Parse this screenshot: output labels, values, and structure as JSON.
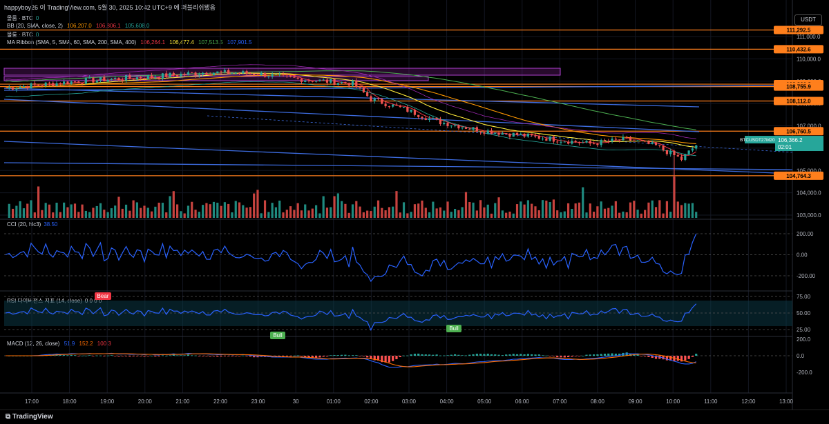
{
  "header": {
    "author_line": "happyboy26 이 TradingView.com, 5월 30, 2025 10:42 UTC+9 에 퍼블리쉬됐음"
  },
  "legend": {
    "row1": {
      "name": "몰룸 · BTC",
      "value": "0"
    },
    "row2": {
      "name": "BB (20, SMA, close, 2)",
      "v1": "106,207.0",
      "v2": "106,806.1",
      "v3": "105,608.0"
    },
    "row3": {
      "name": "몰룸 · BTC",
      "value": "0"
    },
    "row4": {
      "name": "MA Ribbon (SMA, 5, SMA, 60, SMA, 200, SMA, 400)",
      "v1": "106,264.1",
      "v2": "106,477.4",
      "v3": "107,513.5",
      "v4": "107,901.5"
    },
    "cci": {
      "name": "CCI (20, hlc3)",
      "value": "38.50"
    },
    "rsi": {
      "name": "RSI 다이버전스 지표 (14, close)",
      "values": "0  0  0  0"
    },
    "macd": {
      "name": "MACD (12, 26, close)",
      "v1": "51.9",
      "v2": "152.2",
      "v3": "100.3"
    }
  },
  "price_axis": {
    "unit": "USDT",
    "ticks": [
      "111,000.0",
      "110,000.0",
      "109,000.0",
      "108,000.0",
      "107,000.0",
      "106,000.0",
      "105,000.0",
      "104,000.0",
      "103,000.0"
    ],
    "badges": [
      {
        "value": "111,292.5",
        "color": "#ff7f1c"
      },
      {
        "value": "110,432.6",
        "color": "#ff7f1c"
      },
      {
        "value": "108,866.8",
        "color": "#ff7f1c"
      },
      {
        "value": "108,755.9",
        "color": "#ff7f1c"
      },
      {
        "value": "108,112.0",
        "color": "#ff7f1c"
      },
      {
        "value": "106,760.5",
        "color": "#ff7f1c"
      },
      {
        "value": "104,764.3",
        "color": "#ff7f1c"
      }
    ],
    "symbol_badge": {
      "symbol": "BTCUSDT27M2025",
      "price": "106,366.2",
      "countdown": "02:01"
    }
  },
  "cci_axis": {
    "ticks": [
      "200.00",
      "0.00",
      "-200.00"
    ]
  },
  "rsi_axis": {
    "ticks": [
      "75.00",
      "50.00",
      "25.00"
    ]
  },
  "macd_axis": {
    "ticks": [
      "200.0",
      "0.0",
      "-200.0"
    ]
  },
  "signals": {
    "bear": "Bear",
    "bull1": "Bull",
    "bull2": "Bull"
  },
  "time_axis": {
    "ticks": [
      "17:00",
      "18:00",
      "19:00",
      "20:00",
      "21:00",
      "22:00",
      "23:00",
      "30",
      "01:00",
      "02:00",
      "03:00",
      "04:00",
      "05:00",
      "06:00",
      "07:00",
      "08:00",
      "09:00",
      "10:00",
      "11:00",
      "12:00",
      "13:00"
    ]
  },
  "branding": {
    "logo_text": "TradingView"
  },
  "colors": {
    "bg": "#000000",
    "up": "#26a69a",
    "down": "#ef5350",
    "orange": "#ff7f1c",
    "blue": "#3d6ce0",
    "purple": "#9c27b0"
  }
}
